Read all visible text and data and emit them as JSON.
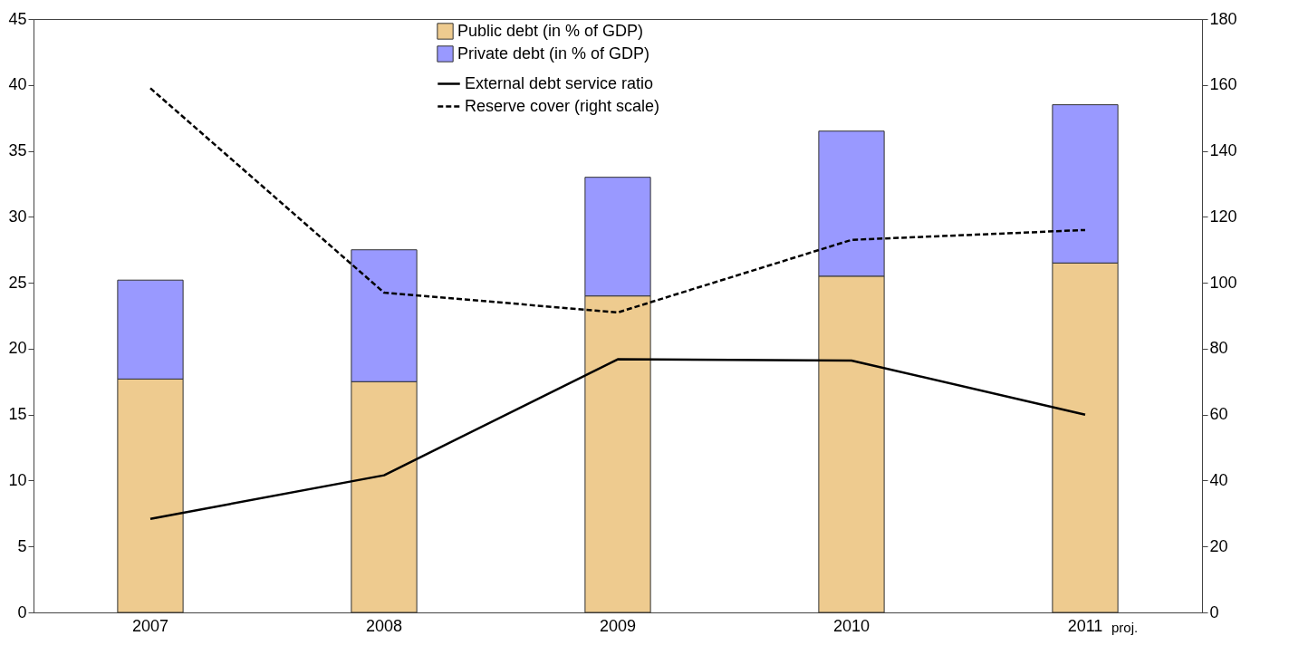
{
  "chart_data": {
    "type": "bar",
    "stacked": true,
    "categories": [
      "2007",
      "2008",
      "2009",
      "2010",
      "2011"
    ],
    "series": [
      {
        "name": "Public debt (in % of GDP)",
        "color": "#eecb8f",
        "values": [
          17.7,
          17.5,
          24.0,
          25.5,
          26.5
        ]
      },
      {
        "name": "Private debt (in % of GDP)",
        "color": "#9999ff",
        "values": [
          7.5,
          10.0,
          9.0,
          11.0,
          12.0
        ]
      },
      {
        "name": "External debt service ratio",
        "type": "line",
        "color": "#000000",
        "line_style": "solid",
        "values": [
          7.1,
          10.4,
          19.2,
          19.1,
          15.0
        ]
      },
      {
        "name": "Reserve cover (right scale)",
        "type": "line",
        "color": "#000000",
        "line_style": "dashed",
        "axis": "y2",
        "values": [
          159,
          97,
          91,
          113,
          116
        ]
      }
    ],
    "ylim": [
      0,
      45
    ],
    "yticks": [
      0,
      5,
      10,
      15,
      20,
      25,
      30,
      35,
      40,
      45
    ],
    "y2lim": [
      0,
      180
    ],
    "y2ticks": [
      0,
      20,
      40,
      60,
      80,
      100,
      120,
      140,
      160,
      180
    ],
    "annotations": [
      "proj."
    ],
    "legend": "top",
    "grid": false
  }
}
